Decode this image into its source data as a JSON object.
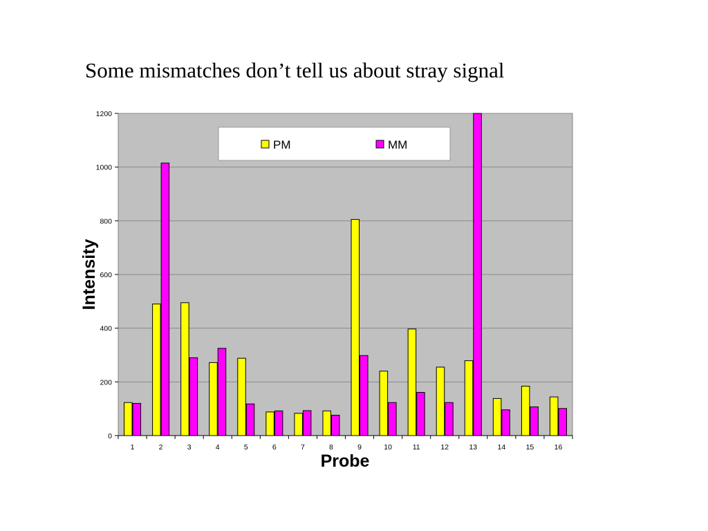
{
  "slide": {
    "title": "Some mismatches don’t tell us about stray signal"
  },
  "colors": {
    "plot_background": "#c0c0c0",
    "gridline": "#8a8a8a",
    "pm": "#ffff00",
    "mm": "#ff00ff",
    "bar_outline": "#000000",
    "legend_background": "#ffffff"
  },
  "chart_data": {
    "type": "bar",
    "title": "",
    "xlabel": "Probe",
    "ylabel": "Intensity",
    "ylim": [
      0,
      1200
    ],
    "yticks": [
      0,
      200,
      400,
      600,
      800,
      1000,
      1200
    ],
    "grid": true,
    "legend_placement": "top-center",
    "categories": [
      "1",
      "2",
      "3",
      "4",
      "5",
      "6",
      "7",
      "8",
      "9",
      "10",
      "11",
      "12",
      "13",
      "14",
      "15",
      "16"
    ],
    "series": [
      {
        "name": "PM",
        "color": "#ffff00",
        "values": [
          123,
          490,
          495,
          272,
          288,
          88,
          83,
          92,
          805,
          240,
          397,
          255,
          279,
          138,
          184,
          144
        ]
      },
      {
        "name": "MM",
        "color": "#ff00ff",
        "values": [
          120,
          1015,
          290,
          325,
          118,
          92,
          93,
          76,
          298,
          123,
          161,
          123,
          1200,
          96,
          107,
          101
        ]
      }
    ]
  }
}
